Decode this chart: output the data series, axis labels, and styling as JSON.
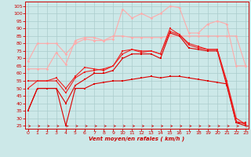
{
  "x": [
    0,
    1,
    2,
    3,
    4,
    5,
    6,
    7,
    8,
    9,
    10,
    11,
    12,
    13,
    14,
    15,
    16,
    17,
    18,
    19,
    20,
    21,
    22,
    23
  ],
  "series": [
    {
      "color": "#ffaaaa",
      "y": [
        63,
        63,
        63,
        74,
        66,
        82,
        84,
        84,
        82,
        85,
        85,
        84,
        84,
        84,
        84,
        85,
        85,
        85,
        85,
        85,
        85,
        85,
        85,
        65
      ]
    },
    {
      "color": "#ffaaaa",
      "y": [
        68,
        80,
        80,
        80,
        73,
        80,
        83,
        82,
        82,
        83,
        103,
        97,
        100,
        97,
        100,
        105,
        104,
        87,
        87,
        93,
        95,
        93,
        65,
        65
      ]
    },
    {
      "color": "#dd0000",
      "y": [
        35,
        50,
        50,
        50,
        25,
        50,
        50,
        53,
        54,
        55,
        55,
        56,
        57,
        58,
        57,
        58,
        58,
        57,
        56,
        55,
        54,
        53,
        27,
        25
      ]
    },
    {
      "color": "#dd0000",
      "y": [
        35,
        50,
        50,
        50,
        40,
        52,
        56,
        60,
        60,
        62,
        70,
        73,
        73,
        73,
        70,
        87,
        85,
        77,
        76,
        75,
        75,
        52,
        27,
        27
      ]
    },
    {
      "color": "#ee2222",
      "y": [
        50,
        55,
        55,
        55,
        47,
        57,
        61,
        62,
        63,
        65,
        73,
        76,
        75,
        75,
        73,
        90,
        86,
        80,
        78,
        76,
        76,
        54,
        28,
        26
      ]
    },
    {
      "color": "#ee2222",
      "y": [
        55,
        55,
        55,
        57,
        50,
        58,
        64,
        63,
        62,
        65,
        75,
        76,
        74,
        75,
        73,
        88,
        86,
        79,
        77,
        76,
        76,
        55,
        30,
        26
      ]
    }
  ],
  "xlim": [
    -0.3,
    23.3
  ],
  "ylim": [
    23,
    108
  ],
  "yticks": [
    25,
    30,
    35,
    40,
    45,
    50,
    55,
    60,
    65,
    70,
    75,
    80,
    85,
    90,
    95,
    100,
    105
  ],
  "xticks": [
    0,
    1,
    2,
    3,
    4,
    5,
    6,
    7,
    8,
    9,
    10,
    11,
    12,
    13,
    14,
    15,
    16,
    17,
    18,
    19,
    20,
    21,
    22,
    23
  ],
  "xlabel": "Vent moyen/en rafales ( km/h )",
  "bg_color": "#cce8e8",
  "grid_color": "#aacccc",
  "tick_color": "#cc0000",
  "label_color": "#cc0000",
  "arrow_color": "#cc0000"
}
